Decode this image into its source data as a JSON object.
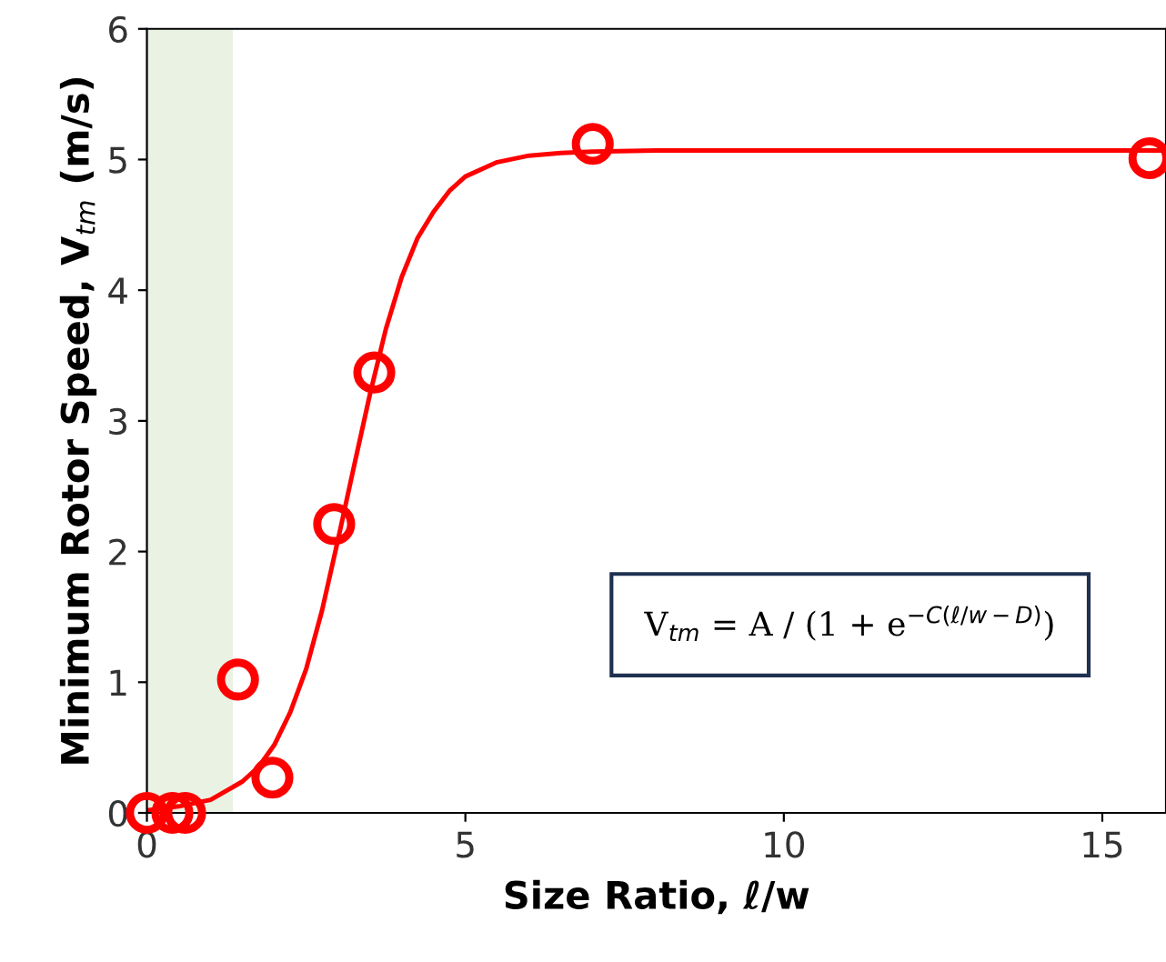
{
  "chart_data": {
    "type": "scatter",
    "xlabel": "Size Ratio, ℓ/w",
    "ylabel": "Minimum Rotor Speed, V$_{tm}$ (m/s)",
    "xlim": [
      0,
      16
    ],
    "xticks": [
      0,
      5,
      10,
      15
    ],
    "ylim": [
      0,
      6
    ],
    "yticks": [
      0,
      1,
      2,
      3,
      4,
      5,
      6
    ],
    "grid": false,
    "bands": [
      {
        "axis": "x",
        "from": 0,
        "to": 1.35,
        "color": "#eaf2e3"
      }
    ],
    "annotations": [
      "V$_{tm}$ = A / (1 + e$^{−C(ℓ/w−D)}$)"
    ],
    "series": [
      {
        "color": "#ff0000",
        "marker": "circle",
        "x": [
          0,
          0.4,
          0.6,
          1.43,
          1.97,
          2.94,
          3.57,
          7,
          15.74
        ],
        "values": [
          0,
          0,
          0,
          1.02,
          0.27,
          2.21,
          3.37,
          5.12,
          5.01
        ]
      },
      {
        "type": "line",
        "color": "#ff0000",
        "x": [
          0,
          0.5,
          1,
          1.5,
          1.75,
          2,
          2.25,
          2.5,
          2.75,
          3,
          3.25,
          3.5,
          3.75,
          4,
          4.25,
          4.5,
          4.75,
          5,
          5.5,
          6,
          6.5,
          7,
          8,
          10,
          12,
          14,
          16
        ],
        "values": [
          0.02,
          0.05,
          0.1,
          0.24,
          0.35,
          0.52,
          0.77,
          1.1,
          1.55,
          2.09,
          2.65,
          3.2,
          3.7,
          4.1,
          4.4,
          4.6,
          4.76,
          4.87,
          4.98,
          5.03,
          5.05,
          5.06,
          5.07,
          5.07,
          5.07,
          5.07,
          5.07
        ]
      }
    ]
  }
}
